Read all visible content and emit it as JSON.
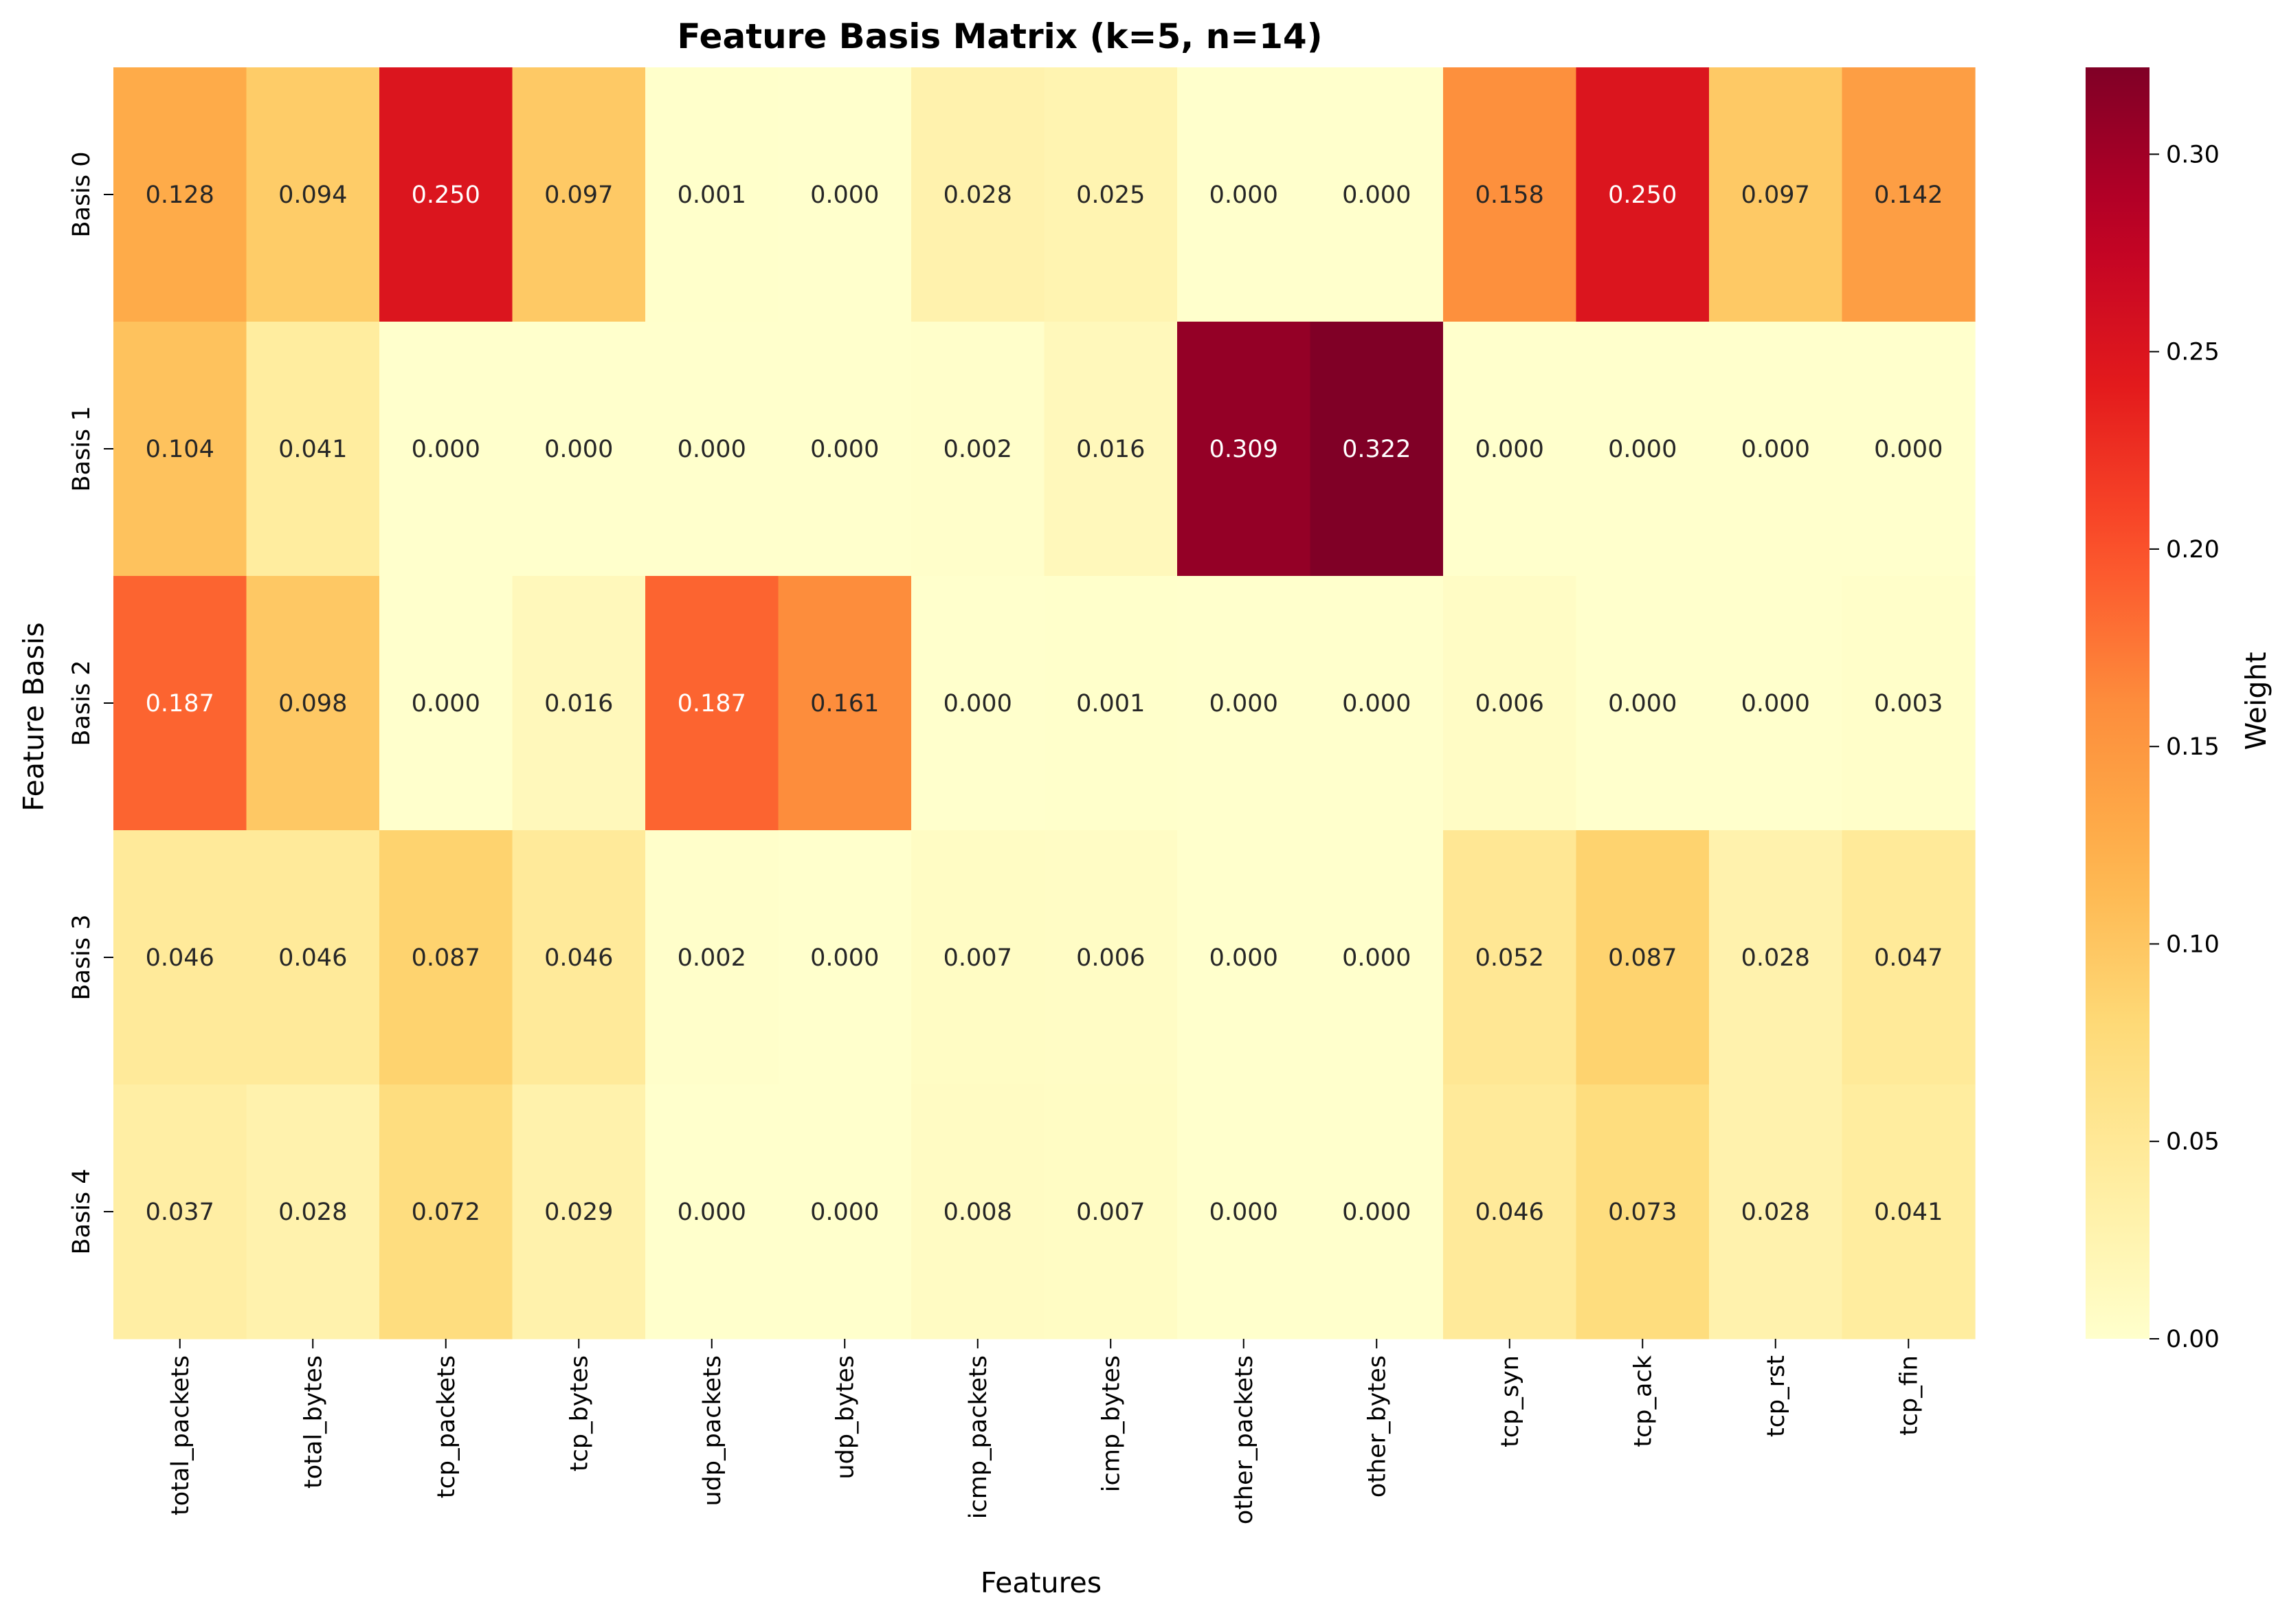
{
  "chart_data": {
    "type": "heatmap",
    "title": "Feature Basis Matrix (k=5, n=14)",
    "xlabel": "Features",
    "ylabel": "Feature Basis",
    "colormap": "YlOrRd",
    "colorbar_label": "Weight",
    "colorbar_range": [
      0.0,
      0.322
    ],
    "colorbar_ticks": [
      "0.00",
      "0.05",
      "0.10",
      "0.15",
      "0.20",
      "0.25",
      "0.30"
    ],
    "x_categories": [
      "total_packets",
      "total_bytes",
      "tcp_packets",
      "tcp_bytes",
      "udp_packets",
      "udp_bytes",
      "icmp_packets",
      "icmp_bytes",
      "other_packets",
      "other_bytes",
      "tcp_syn",
      "tcp_ack",
      "tcp_rst",
      "tcp_fin"
    ],
    "y_categories": [
      "Basis 0",
      "Basis 1",
      "Basis 2",
      "Basis 3",
      "Basis 4"
    ],
    "values": [
      [
        0.128,
        0.094,
        0.25,
        0.097,
        0.001,
        0.0,
        0.028,
        0.025,
        0.0,
        0.0,
        0.158,
        0.25,
        0.097,
        0.142
      ],
      [
        0.104,
        0.041,
        0.0,
        0.0,
        0.0,
        0.0,
        0.002,
        0.016,
        0.309,
        0.322,
        0.0,
        0.0,
        0.0,
        0.0
      ],
      [
        0.187,
        0.098,
        0.0,
        0.016,
        0.187,
        0.161,
        0.0,
        0.001,
        0.0,
        0.0,
        0.006,
        0.0,
        0.0,
        0.003
      ],
      [
        0.046,
        0.046,
        0.087,
        0.046,
        0.002,
        0.0,
        0.007,
        0.006,
        0.0,
        0.0,
        0.052,
        0.087,
        0.028,
        0.047
      ],
      [
        0.037,
        0.028,
        0.072,
        0.029,
        0.0,
        0.0,
        0.008,
        0.007,
        0.0,
        0.0,
        0.046,
        0.073,
        0.028,
        0.041
      ]
    ]
  }
}
